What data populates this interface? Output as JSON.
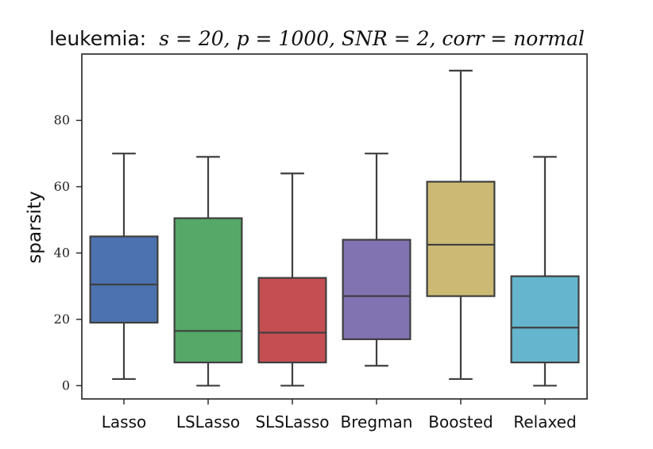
{
  "chart_data": {
    "type": "boxplot",
    "title_prefix": "leukemia:",
    "title_math": "s = 20, p = 1000, SNR = 2, corr = normal",
    "xlabel": "",
    "ylabel": "sparsity",
    "ylim": [
      -4,
      100
    ],
    "yticks": [
      0,
      20,
      40,
      60,
      80
    ],
    "categories": [
      "Lasso",
      "LSLasso",
      "SLSLasso",
      "Bregman",
      "Boosted",
      "Relaxed"
    ],
    "series": [
      {
        "name": "Lasso",
        "color": "#4c72b0",
        "min": 2,
        "q1": 19,
        "median": 30.5,
        "q3": 45,
        "max": 70
      },
      {
        "name": "LSLasso",
        "color": "#55a868",
        "min": 0,
        "q1": 7,
        "median": 16.5,
        "q3": 50.5,
        "max": 69
      },
      {
        "name": "SLSLasso",
        "color": "#c44e52",
        "min": 0,
        "q1": 7,
        "median": 16,
        "q3": 32.5,
        "max": 64
      },
      {
        "name": "Bregman",
        "color": "#8172b2",
        "min": 6,
        "q1": 14,
        "median": 27,
        "q3": 44,
        "max": 70
      },
      {
        "name": "Boosted",
        "color": "#ccb974",
        "min": 2,
        "q1": 27,
        "median": 42.5,
        "q3": 61.5,
        "max": 95
      },
      {
        "name": "Relaxed",
        "color": "#64b5cd",
        "min": 0,
        "q1": 7,
        "median": 17.5,
        "q3": 33,
        "max": 69
      }
    ]
  }
}
